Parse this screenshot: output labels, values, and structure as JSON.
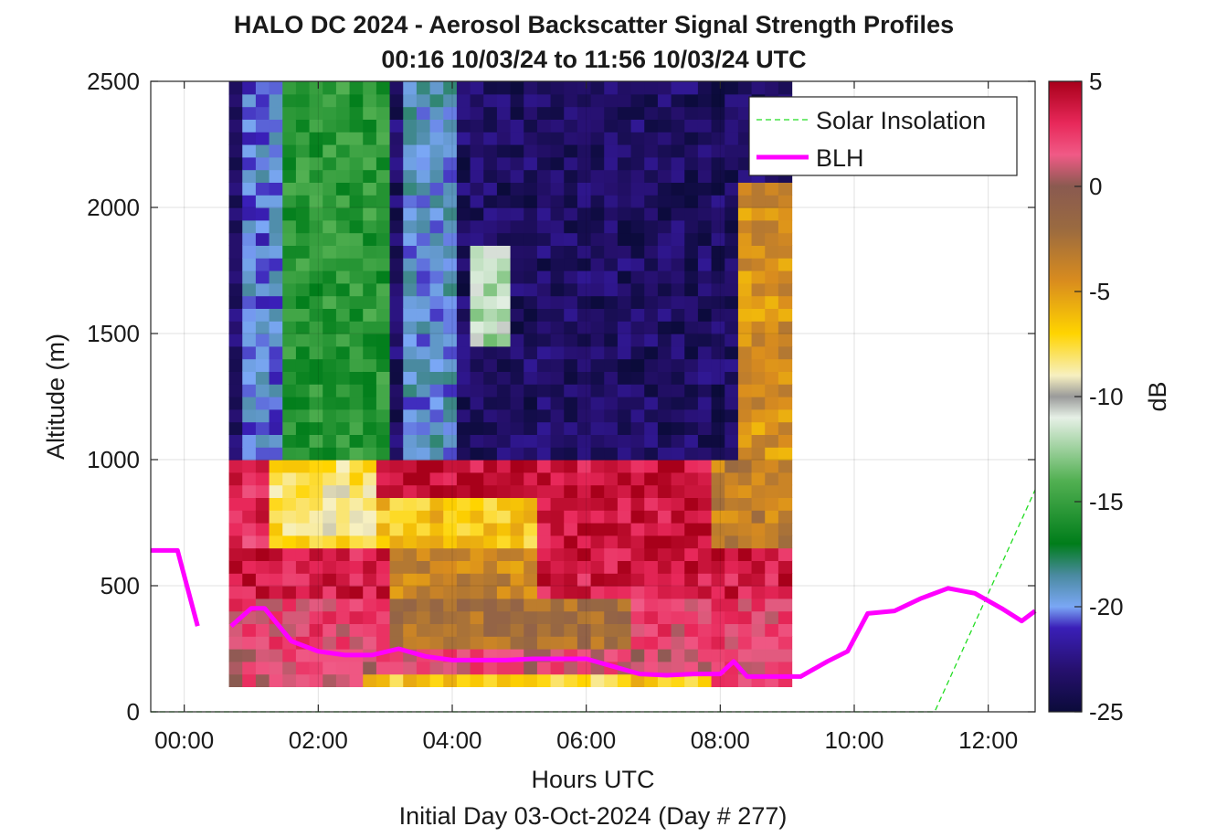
{
  "chart_data": {
    "type": "heatmap",
    "title": "HALO DC 2024 - Aerosol Backscatter Signal Strength Profiles",
    "subtitle": "00:16 10/03/24 to 11:56 10/03/24  UTC",
    "xlabel": "Hours UTC",
    "xlabel2": "Initial Day 03-Oct-2024 (Day # 277)",
    "ylabel": "Altitude (m)",
    "xlim": [
      -0.5,
      12.7
    ],
    "ylim": [
      0,
      2500
    ],
    "grid": true,
    "x_ticks": [
      0,
      2,
      4,
      6,
      8,
      10,
      12
    ],
    "x_tick_labels": [
      "00:00",
      "02:00",
      "04:00",
      "06:00",
      "08:00",
      "10:00",
      "12:00"
    ],
    "y_ticks": [
      0,
      500,
      1000,
      1500,
      2000,
      2500
    ],
    "y_tick_labels": [
      "0",
      "500",
      "1000",
      "1500",
      "2000",
      "2500"
    ],
    "colorbar": {
      "label": "dB",
      "range": [
        -25,
        5
      ],
      "ticks": [
        5,
        0,
        -5,
        -10,
        -15,
        -20,
        -25
      ],
      "tick_labels": [
        "5",
        "0",
        "-5",
        "-10",
        "-15",
        "-20",
        "-25"
      ],
      "colormap_stops": [
        {
          "value": -25,
          "color": "#0b0b3a"
        },
        {
          "value": -23,
          "color": "#26106e"
        },
        {
          "value": -21,
          "color": "#3a1fb8"
        },
        {
          "value": -20,
          "color": "#7aa7f5"
        },
        {
          "value": -18.5,
          "color": "#4a8aa0"
        },
        {
          "value": -17,
          "color": "#007d1a"
        },
        {
          "value": -14,
          "color": "#52b052"
        },
        {
          "value": -11,
          "color": "#e6f0e6"
        },
        {
          "value": -10,
          "color": "#9a9a9a"
        },
        {
          "value": -9,
          "color": "#f7f0c0"
        },
        {
          "value": -7,
          "color": "#ffd400"
        },
        {
          "value": -4.5,
          "color": "#d98c1e"
        },
        {
          "value": -2,
          "color": "#9a6a40"
        },
        {
          "value": 0,
          "color": "#8a5a50"
        },
        {
          "value": 1.5,
          "color": "#f05a86"
        },
        {
          "value": 3,
          "color": "#e8285a"
        },
        {
          "value": 5,
          "color": "#a8001a"
        }
      ]
    },
    "heatmap": {
      "x_start": 0.667,
      "x_step": 0.2,
      "columns": 42,
      "y_start": 100,
      "y_step": 50,
      "rows": 48,
      "description_values": "dB values per cell are generated in columns below",
      "columns_db": []
    },
    "series": [
      {
        "name": "Solar Insolation",
        "style": "dashed",
        "color": "#22dd22",
        "x": [
          -0.5,
          11.2,
          12.7
        ],
        "y": [
          0,
          0,
          880
        ]
      },
      {
        "name": "BLH",
        "style": "solid",
        "color": "#ff00ff",
        "segments": [
          {
            "x": [
              -0.5,
              -0.1,
              0.2
            ],
            "y": [
              640,
              640,
              340
            ]
          },
          {
            "x": [
              0.7,
              1.0,
              1.2,
              1.6,
              2.0,
              2.4,
              2.8,
              3.2,
              3.6,
              4.0,
              4.4,
              4.8,
              5.2,
              5.6,
              6.0,
              6.4,
              6.8,
              7.2,
              7.6,
              8.0,
              8.2,
              8.4,
              8.8,
              9.2,
              9.6,
              9.9,
              10.2,
              10.6,
              11.0,
              11.4,
              11.8,
              12.2,
              12.5,
              12.7
            ],
            "y": [
              340,
              410,
              410,
              280,
              240,
              225,
              225,
              250,
              220,
              205,
              205,
              205,
              210,
              210,
              210,
              180,
              150,
              145,
              150,
              150,
              200,
              140,
              140,
              140,
              200,
              240,
              390,
              400,
              450,
              490,
              470,
              410,
              360,
              400
            ]
          }
        ]
      }
    ],
    "legend": {
      "placement": "top-right",
      "entries": [
        "Solar Insolation",
        "BLH"
      ]
    }
  }
}
